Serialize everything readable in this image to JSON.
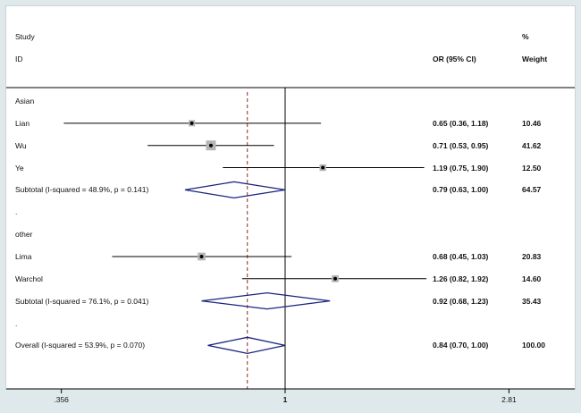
{
  "colors": {
    "diamond": "#1a237e",
    "null_line": "#000000",
    "ref_line": "#8b2b2b",
    "panel": "#ffffff",
    "background": "#dfe9ec"
  },
  "header": {
    "study_label": "Study",
    "id_label": "ID",
    "or_label": "OR (95% CI)",
    "percent_label": "%",
    "weight_label": "Weight"
  },
  "chart_data": {
    "type": "forest",
    "scale": "log",
    "xlim": [
      0.25,
      4.0
    ],
    "x_ticks": [
      {
        "value": 0.356,
        "label": ".356"
      },
      {
        "value": 1,
        "label": "1"
      },
      {
        "value": 2.81,
        "label": "2.81"
      }
    ],
    "null_value": 1,
    "overall_reference_value": 0.84,
    "rows": [
      {
        "kind": "group",
        "label": "Asian"
      },
      {
        "kind": "study",
        "label": "Lian",
        "or": 0.65,
        "ci_low": 0.36,
        "ci_high": 1.18,
        "ci_text": "0.65 (0.36, 1.18)",
        "weight": "10.46"
      },
      {
        "kind": "study",
        "label": "Wu",
        "or": 0.71,
        "ci_low": 0.53,
        "ci_high": 0.95,
        "ci_text": "0.71 (0.53, 0.95)",
        "weight": "41.62"
      },
      {
        "kind": "study",
        "label": "Ye",
        "or": 1.19,
        "ci_low": 0.75,
        "ci_high": 1.9,
        "ci_text": "1.19 (0.75, 1.90)",
        "weight": "12.50"
      },
      {
        "kind": "subtotal",
        "label": "Subtotal  (I-squared = 48.9%, p = 0.141)",
        "or": 0.79,
        "ci_low": 0.63,
        "ci_high": 1.0,
        "ci_text": "0.79 (0.63, 1.00)",
        "weight": "64.57"
      },
      {
        "kind": "dot",
        "label": "."
      },
      {
        "kind": "group",
        "label": "other"
      },
      {
        "kind": "study",
        "label": "Lima",
        "or": 0.68,
        "ci_low": 0.45,
        "ci_high": 1.03,
        "ci_text": "0.68 (0.45, 1.03)",
        "weight": "20.83"
      },
      {
        "kind": "study",
        "label": "Warchol",
        "or": 1.26,
        "ci_low": 0.82,
        "ci_high": 1.92,
        "ci_text": "1.26 (0.82, 1.92)",
        "weight": "14.60"
      },
      {
        "kind": "subtotal",
        "label": "Subtotal  (I-squared = 76.1%, p = 0.041)",
        "or": 0.92,
        "ci_low": 0.68,
        "ci_high": 1.23,
        "ci_text": "0.92 (0.68, 1.23)",
        "weight": "35.43"
      },
      {
        "kind": "dot",
        "label": "."
      },
      {
        "kind": "overall",
        "label": "Overall  (I-squared = 53.9%, p = 0.070)",
        "or": 0.84,
        "ci_low": 0.7,
        "ci_high": 1.0,
        "ci_text": "0.84 (0.70, 1.00)",
        "weight": "100.00"
      }
    ]
  }
}
